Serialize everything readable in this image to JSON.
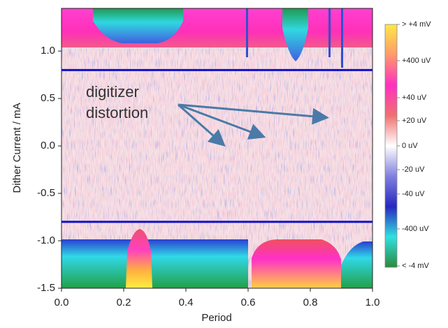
{
  "chart_data": {
    "type": "heatmap",
    "xlabel": "Period",
    "ylabel": "Dither Current / mA",
    "xlim": [
      0,
      1
    ],
    "ylim": [
      -1.5,
      1.45
    ],
    "xticks": [
      {
        "value": 0,
        "label": "0.0"
      },
      {
        "value": 0.2,
        "label": "0.2"
      },
      {
        "value": 0.4,
        "label": "0.4"
      },
      {
        "value": 0.6,
        "label": "0.6"
      },
      {
        "value": 0.8,
        "label": "0.8"
      },
      {
        "value": 1,
        "label": "1.0"
      }
    ],
    "yticks": [
      -1.5,
      {
        "value": -1,
        "label": "-1.0"
      },
      -0.5,
      {
        "value": 0,
        "label": "0.0"
      },
      0.5,
      {
        "value": 1,
        "label": "1.0"
      }
    ],
    "hlines": [
      0.8,
      -0.8
    ],
    "hline_color": "#1010c8",
    "annotation": [
      "digitizer",
      "distortion"
    ],
    "colorbar": {
      "labels": [
        "> +4 mV",
        "+400 uV",
        "+40 uV",
        "+20 uV",
        "0 uV",
        "-20 uV",
        "-40 uV",
        "-400 uV",
        "< -4 mV"
      ],
      "colors": [
        "#ffe845",
        "#ff9a6a",
        "#ff30c0",
        "#f07070",
        "#ffffff",
        "#8080e0",
        "#2828c0",
        "#30e0e0",
        "#2a8a3a"
      ]
    }
  }
}
